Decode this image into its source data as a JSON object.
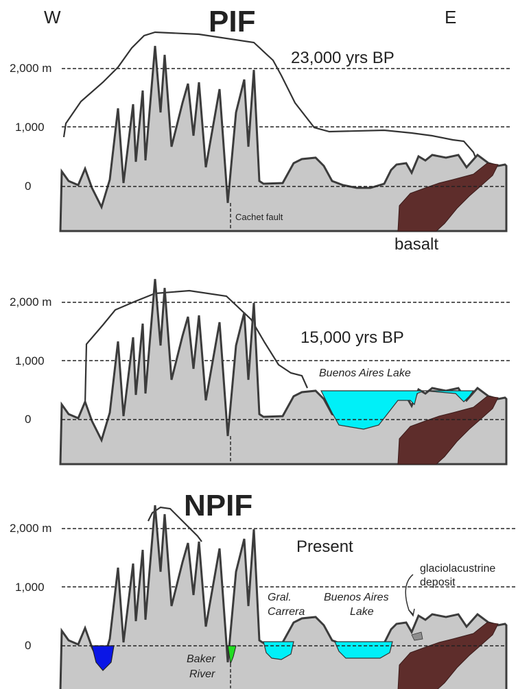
{
  "direction": {
    "west": "W",
    "east": "E"
  },
  "axis_labels": {
    "top": "2,000 m",
    "mid": "1,000",
    "zero": "0"
  },
  "panel1": {
    "title": "PIF",
    "period": "23,000 yrs BP",
    "fault_label": "Cachet fault",
    "rock_label": "basalt"
  },
  "panel2": {
    "period": "15,000 yrs BP",
    "lake_label": "Buenos Aires Lake"
  },
  "panel3": {
    "title": "NPIF",
    "period": "Present",
    "deposit_label_1": "glaciolacustrine",
    "deposit_label_2": "deposit",
    "gral_1": "Gral.",
    "gral_2": "Carrera",
    "ba_1": "Buenos Aires",
    "ba_2": "Lake",
    "baker_1": "Baker",
    "baker_2": "River"
  },
  "colors": {
    "terrain": "#c8c8c8",
    "basalt": "#5e2d2b",
    "lake": "#00f0f8",
    "west_lake": "#0a16e6",
    "baker_river": "#22dd22"
  }
}
